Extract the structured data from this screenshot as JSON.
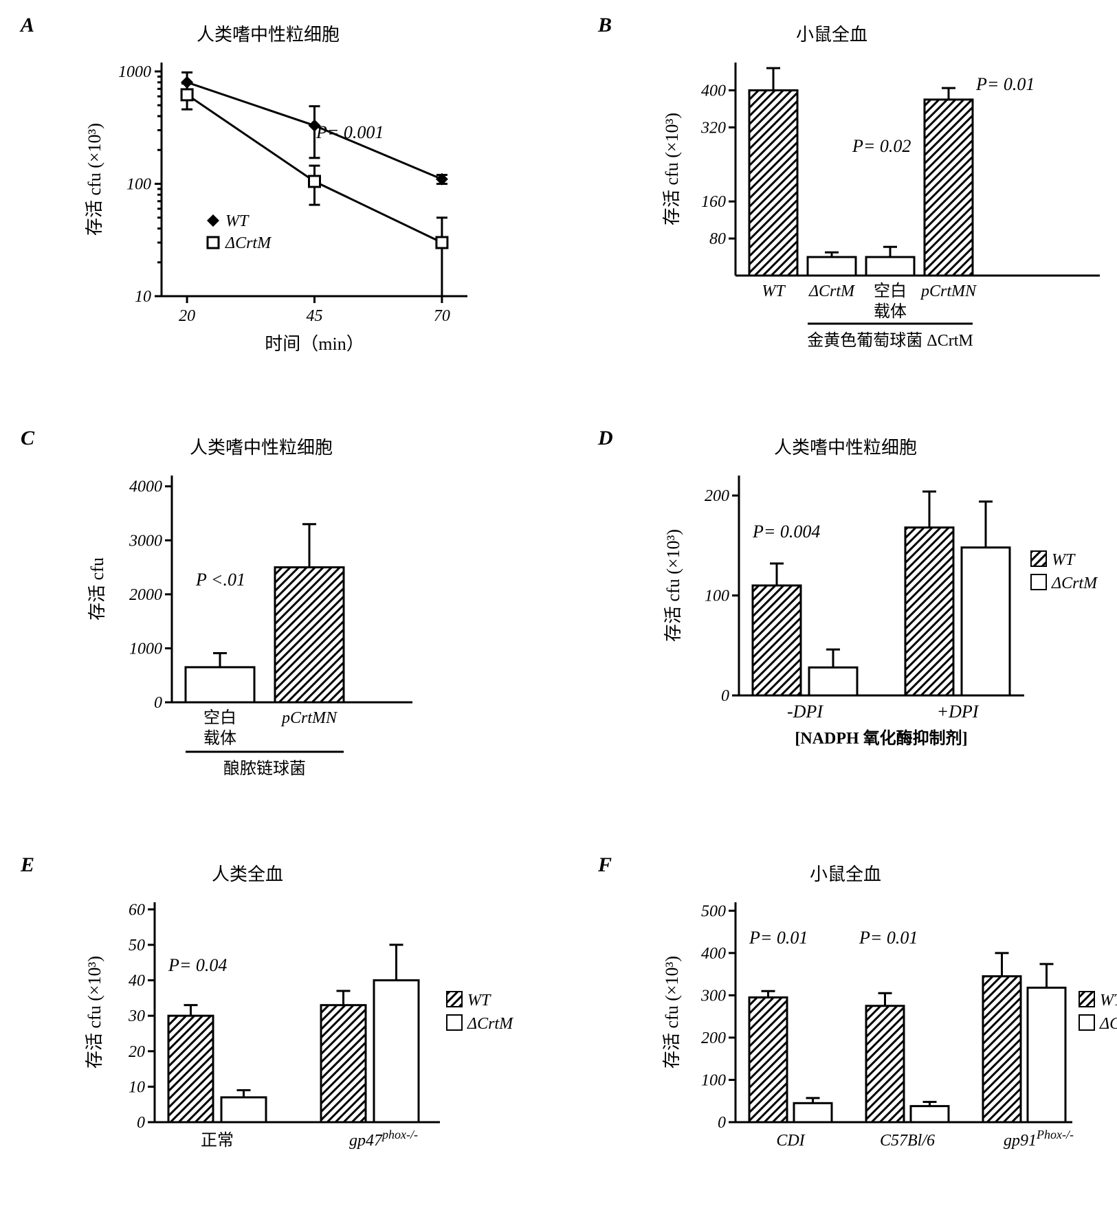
{
  "palette": {
    "fg": "#000000",
    "bg": "#ffffff"
  },
  "fonts": {
    "label_size": 26,
    "tick_size": 24,
    "panel_label_size": 30
  },
  "panels": {
    "A": {
      "label": "A",
      "title": "人类嗜中性粒细胞",
      "type": "line",
      "xlabel": "时间（min）",
      "ylabel": "存活 cfu (×10³)",
      "x_ticks": [
        20,
        45,
        70
      ],
      "y_scale": "log",
      "y_ticks": [
        10,
        100,
        1000
      ],
      "p_text": "P= 0.001",
      "legend": [
        {
          "label": "WT",
          "marker": "filled-diamond"
        },
        {
          "label": "ΔCrtM",
          "marker": "open-square"
        }
      ],
      "series": [
        {
          "name": "WT",
          "marker": "filled-diamond",
          "x": [
            20,
            45,
            70
          ],
          "y": [
            800,
            330,
            110
          ],
          "err": [
            180,
            160,
            10
          ]
        },
        {
          "name": "ΔCrtM",
          "marker": "open-square",
          "x": [
            20,
            45,
            70
          ],
          "y": [
            620,
            105,
            30
          ],
          "err": [
            160,
            40,
            20
          ]
        }
      ]
    },
    "B": {
      "label": "B",
      "title": "小鼠全血",
      "type": "bar",
      "ylabel": "存活 cfu (×10³)",
      "y_ticks": [
        80,
        160,
        320,
        400
      ],
      "categories": [
        "WT",
        "ΔCrtM",
        "空白载体",
        "pCrtMN"
      ],
      "bars": [
        {
          "cat": "WT",
          "value": 400,
          "err": 48,
          "style": "hatched"
        },
        {
          "cat": "ΔCrtM",
          "value": 40,
          "err": 10,
          "style": "empty"
        },
        {
          "cat": "空白载体",
          "value": 40,
          "err": 22,
          "style": "empty"
        },
        {
          "cat": "pCrtMN",
          "value": 380,
          "err": 25,
          "style": "hatched"
        }
      ],
      "p_texts": [
        {
          "text": "P= 0.02",
          "x": 1.5
        },
        {
          "text": "P= 0.01",
          "x": 3.2
        }
      ],
      "bracket_label": "金黄色葡萄球菌 ΔCrtM",
      "sub_label_stack": [
        "空白",
        "载体"
      ]
    },
    "C": {
      "label": "C",
      "title": "人类嗜中性粒细胞",
      "type": "bar",
      "ylabel": "存活 cfu",
      "y_ticks": [
        0,
        1000,
        2000,
        3000,
        4000
      ],
      "categories": [
        "空白载体",
        "pCrtMN"
      ],
      "bars": [
        {
          "cat": "空白载体",
          "value": 650,
          "err": 260,
          "style": "empty"
        },
        {
          "cat": "pCrtMN",
          "value": 2500,
          "err": 800,
          "style": "hatched"
        }
      ],
      "p_text": "P <.01",
      "bracket_label": "酿脓链球菌",
      "sub_label_stack": [
        "空白",
        "载体"
      ]
    },
    "D": {
      "label": "D",
      "title": "人类嗜中性粒细胞",
      "type": "bar-grouped",
      "ylabel": "存活 cfu (×10³)",
      "y_ticks": [
        0,
        100,
        200
      ],
      "groups": [
        "-DPI",
        "+DPI"
      ],
      "legend": [
        {
          "label": "WT",
          "style": "hatched"
        },
        {
          "label": "ΔCrtM",
          "style": "empty"
        }
      ],
      "bars": [
        {
          "group": "-DPI",
          "series": "WT",
          "value": 110,
          "err": 22,
          "style": "hatched"
        },
        {
          "group": "-DPI",
          "series": "ΔCrtM",
          "value": 28,
          "err": 18,
          "style": "empty"
        },
        {
          "group": "+DPI",
          "series": "WT",
          "value": 168,
          "err": 36,
          "style": "hatched"
        },
        {
          "group": "+DPI",
          "series": "ΔCrtM",
          "value": 148,
          "err": 46,
          "style": "empty"
        }
      ],
      "p_text": "P= 0.004",
      "sub_xlabel": "[NADPH 氧化酶抑制剂]"
    },
    "E": {
      "label": "E",
      "title": "人类全血",
      "type": "bar-grouped",
      "ylabel": "存活 cfu (×10³)",
      "y_ticks": [
        0,
        10,
        20,
        30,
        40,
        50,
        60
      ],
      "groups": [
        "正常",
        "gp47ᵖʰᵒˣ⁻ᐟ⁻"
      ],
      "group_labels": [
        {
          "plain": "正常",
          "sup": ""
        },
        {
          "plain": "gp47",
          "sup": "phox-/-"
        }
      ],
      "legend": [
        {
          "label": "WT",
          "style": "hatched"
        },
        {
          "label": "ΔCrtM",
          "style": "empty"
        }
      ],
      "bars": [
        {
          "group": "正常",
          "series": "WT",
          "value": 30,
          "err": 3,
          "style": "hatched"
        },
        {
          "group": "正常",
          "series": "ΔCrtM",
          "value": 7,
          "err": 2,
          "style": "empty"
        },
        {
          "group": "gp47",
          "series": "WT",
          "value": 33,
          "err": 4,
          "style": "hatched"
        },
        {
          "group": "gp47",
          "series": "ΔCrtM",
          "value": 40,
          "err": 10,
          "style": "empty"
        }
      ],
      "p_text": "P= 0.04"
    },
    "F": {
      "label": "F",
      "title": "小鼠全血",
      "type": "bar-grouped",
      "ylabel": "存活 cfu (×10³)",
      "y_ticks": [
        0,
        100,
        200,
        300,
        400,
        500
      ],
      "groups": [
        "CDI",
        "C57Bl/6",
        "gp91ᴾʰᵒˣ⁻ᐟ⁻"
      ],
      "group_labels": [
        {
          "plain": "CDI",
          "sup": ""
        },
        {
          "plain": "C57Bl/6",
          "sup": ""
        },
        {
          "plain": "gp91",
          "sup": "Phox-/-"
        }
      ],
      "legend": [
        {
          "label": "WT",
          "style": "hatched"
        },
        {
          "label": "ΔCrtM",
          "style": "empty"
        }
      ],
      "bars": [
        {
          "group": "CDI",
          "series": "WT",
          "value": 295,
          "err": 15,
          "style": "hatched"
        },
        {
          "group": "CDI",
          "series": "ΔCrtM",
          "value": 45,
          "err": 12,
          "style": "empty"
        },
        {
          "group": "C57Bl/6",
          "series": "WT",
          "value": 275,
          "err": 30,
          "style": "hatched"
        },
        {
          "group": "C57Bl/6",
          "series": "ΔCrtM",
          "value": 38,
          "err": 10,
          "style": "empty"
        },
        {
          "group": "gp91",
          "series": "WT",
          "value": 345,
          "err": 55,
          "style": "hatched"
        },
        {
          "group": "gp91",
          "series": "ΔCrtM",
          "value": 318,
          "err": 56,
          "style": "empty"
        }
      ],
      "p_texts": [
        {
          "text": "P= 0.01",
          "x": 0.5
        },
        {
          "text": "P= 0.01",
          "x": 1.5
        }
      ]
    }
  }
}
